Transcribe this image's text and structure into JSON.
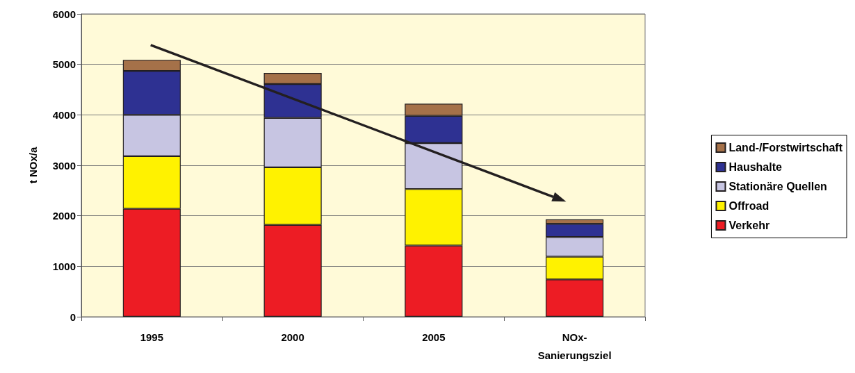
{
  "chart_data": {
    "type": "bar",
    "stacked": true,
    "ylabel": "t NOx/a",
    "categories": [
      "1995",
      "2000",
      "2005",
      "NOx-\nSanierungsziel"
    ],
    "series": [
      {
        "name": "Verkehr",
        "color": "#ed1c24",
        "values": [
          2140,
          1820,
          1410,
          740
        ]
      },
      {
        "name": "Offroad",
        "color": "#fff200",
        "values": [
          1040,
          1140,
          1120,
          450
        ]
      },
      {
        "name": "Stationäre Quellen",
        "color": "#c7c5e2",
        "values": [
          820,
          980,
          910,
          390
        ]
      },
      {
        "name": "Haushalte",
        "color": "#2e3192",
        "values": [
          870,
          670,
          540,
          260
        ]
      },
      {
        "name": "Land-/Forstwirtschaft",
        "color": "#a57149",
        "values": [
          220,
          220,
          240,
          90
        ]
      }
    ],
    "ylim": [
      0,
      6000
    ],
    "yticks": [
      0,
      1000,
      2000,
      3000,
      4000,
      5000,
      6000
    ],
    "grid": "y",
    "legend": "right"
  }
}
